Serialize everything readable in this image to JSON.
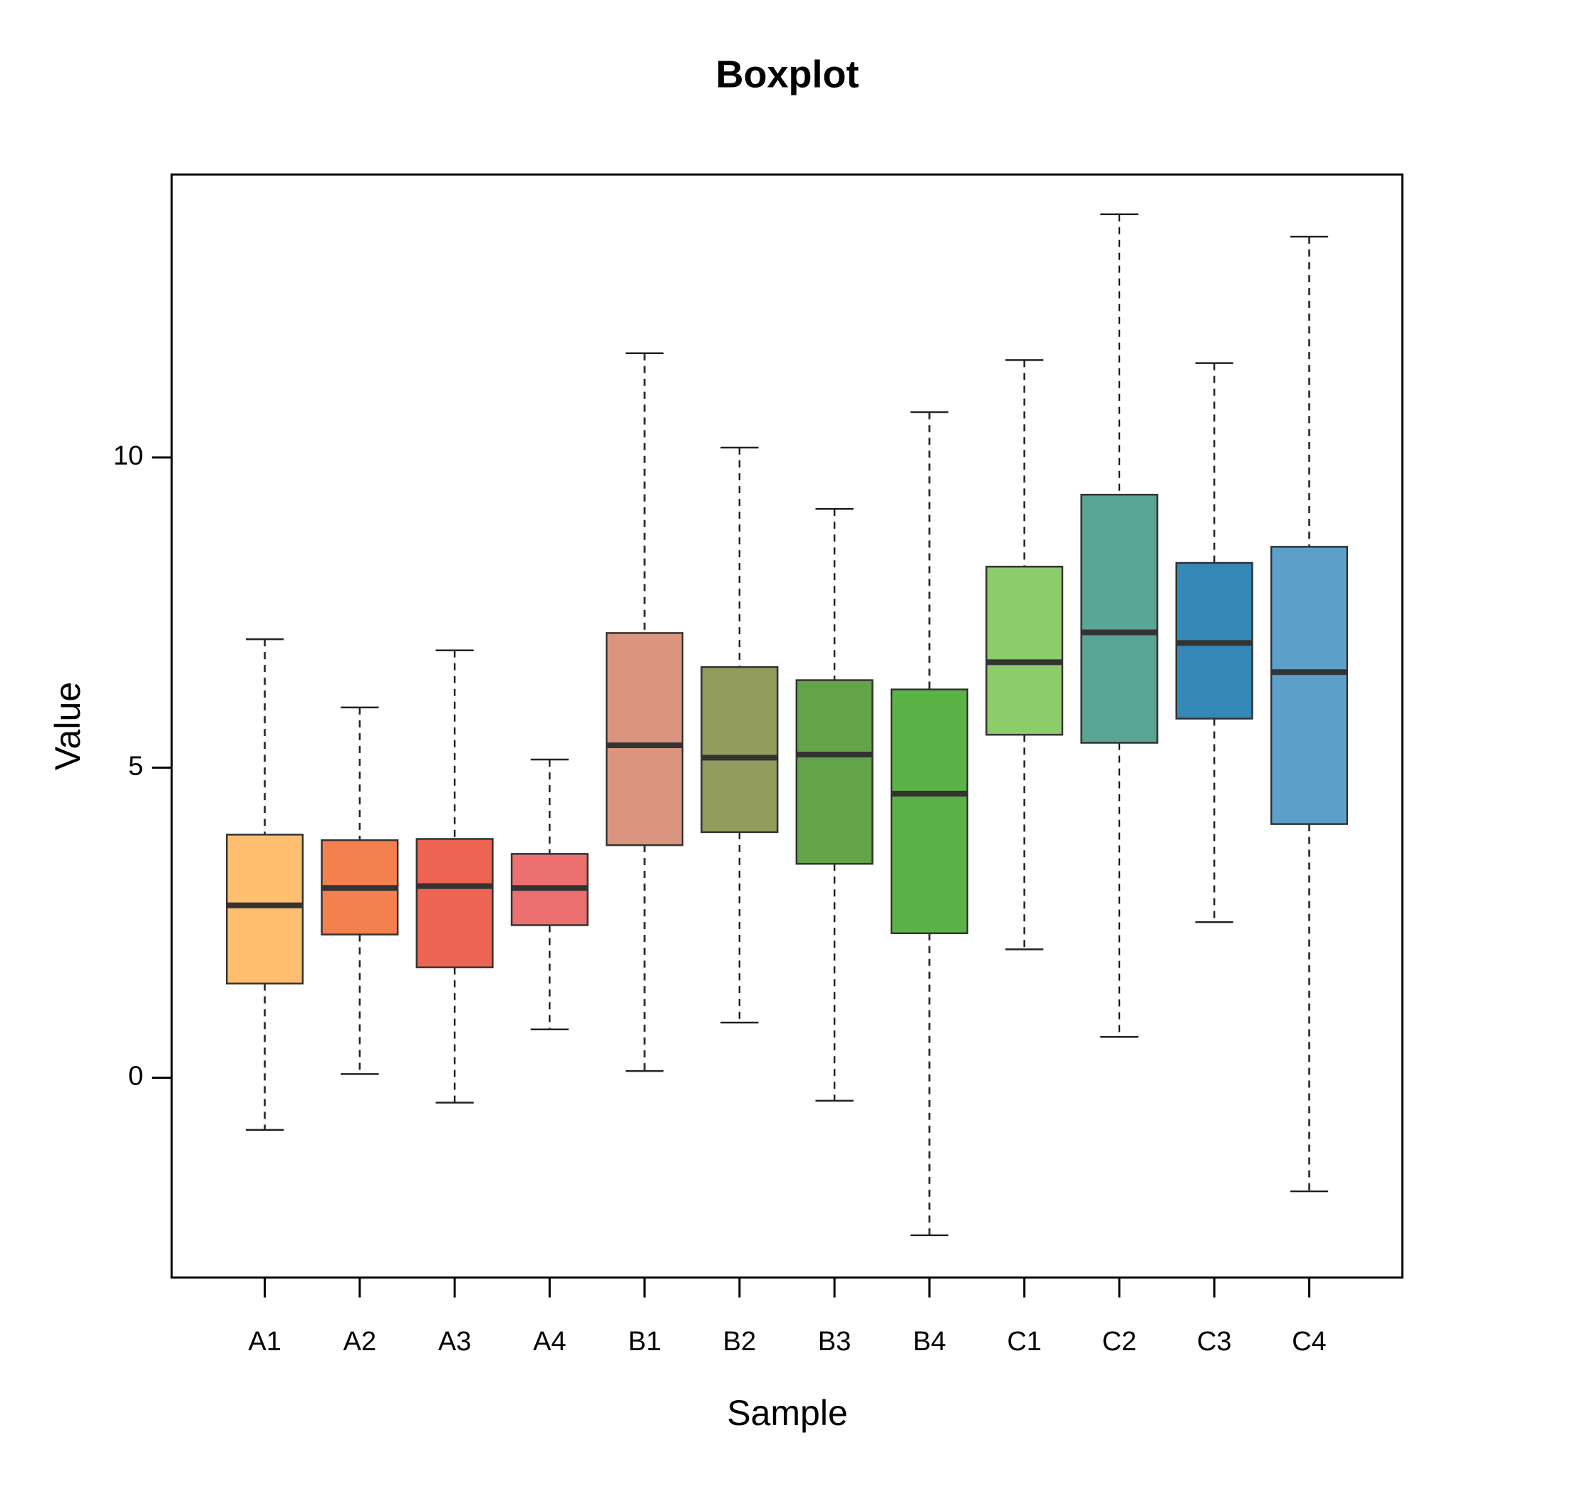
{
  "chart_data": {
    "type": "boxplot",
    "title": "Boxplot",
    "x_label": "Sample",
    "y_label": "Value",
    "categories": [
      "A1",
      "A2",
      "A3",
      "A4",
      "B1",
      "B2",
      "B3",
      "B4",
      "C1",
      "C2",
      "C3",
      "C4"
    ],
    "boxes": [
      {
        "min": -0.84,
        "q1": 1.52,
        "median": 2.78,
        "q3": 3.92,
        "max": 7.07,
        "color": "#FDBF6F"
      },
      {
        "min": 0.06,
        "q1": 2.31,
        "median": 3.06,
        "q3": 3.83,
        "max": 5.97,
        "color": "#F4804F"
      },
      {
        "min": -0.4,
        "q1": 1.78,
        "median": 3.09,
        "q3": 3.85,
        "max": 6.89,
        "color": "#EE6452"
      },
      {
        "min": 0.78,
        "q1": 2.46,
        "median": 3.06,
        "q3": 3.61,
        "max": 5.13,
        "color": "#EC7070"
      },
      {
        "min": 0.11,
        "q1": 3.75,
        "median": 5.36,
        "q3": 7.17,
        "max": 11.68,
        "color": "#DA9580"
      },
      {
        "min": 0.89,
        "q1": 3.96,
        "median": 5.16,
        "q3": 6.62,
        "max": 10.16,
        "color": "#929D5D"
      },
      {
        "min": -0.37,
        "q1": 3.45,
        "median": 5.21,
        "q3": 6.41,
        "max": 9.17,
        "color": "#63A448"
      },
      {
        "min": -2.54,
        "q1": 2.33,
        "median": 4.58,
        "q3": 6.26,
        "max": 10.73,
        "color": "#5BB247"
      },
      {
        "min": 2.07,
        "q1": 5.53,
        "median": 6.7,
        "q3": 8.24,
        "max": 11.57,
        "color": "#8DCC6A"
      },
      {
        "min": 0.66,
        "q1": 5.4,
        "median": 7.18,
        "q3": 9.4,
        "max": 13.92,
        "color": "#5BA596"
      },
      {
        "min": 2.51,
        "q1": 5.79,
        "median": 7.01,
        "q3": 8.3,
        "max": 11.52,
        "color": "#3588B6"
      },
      {
        "min": -1.83,
        "q1": 4.09,
        "median": 6.54,
        "q3": 8.56,
        "max": 13.56,
        "color": "#5CA0C9"
      }
    ],
    "ylim": [
      -3.22,
      14.56
    ],
    "yticks": [
      0,
      5,
      10
    ]
  }
}
